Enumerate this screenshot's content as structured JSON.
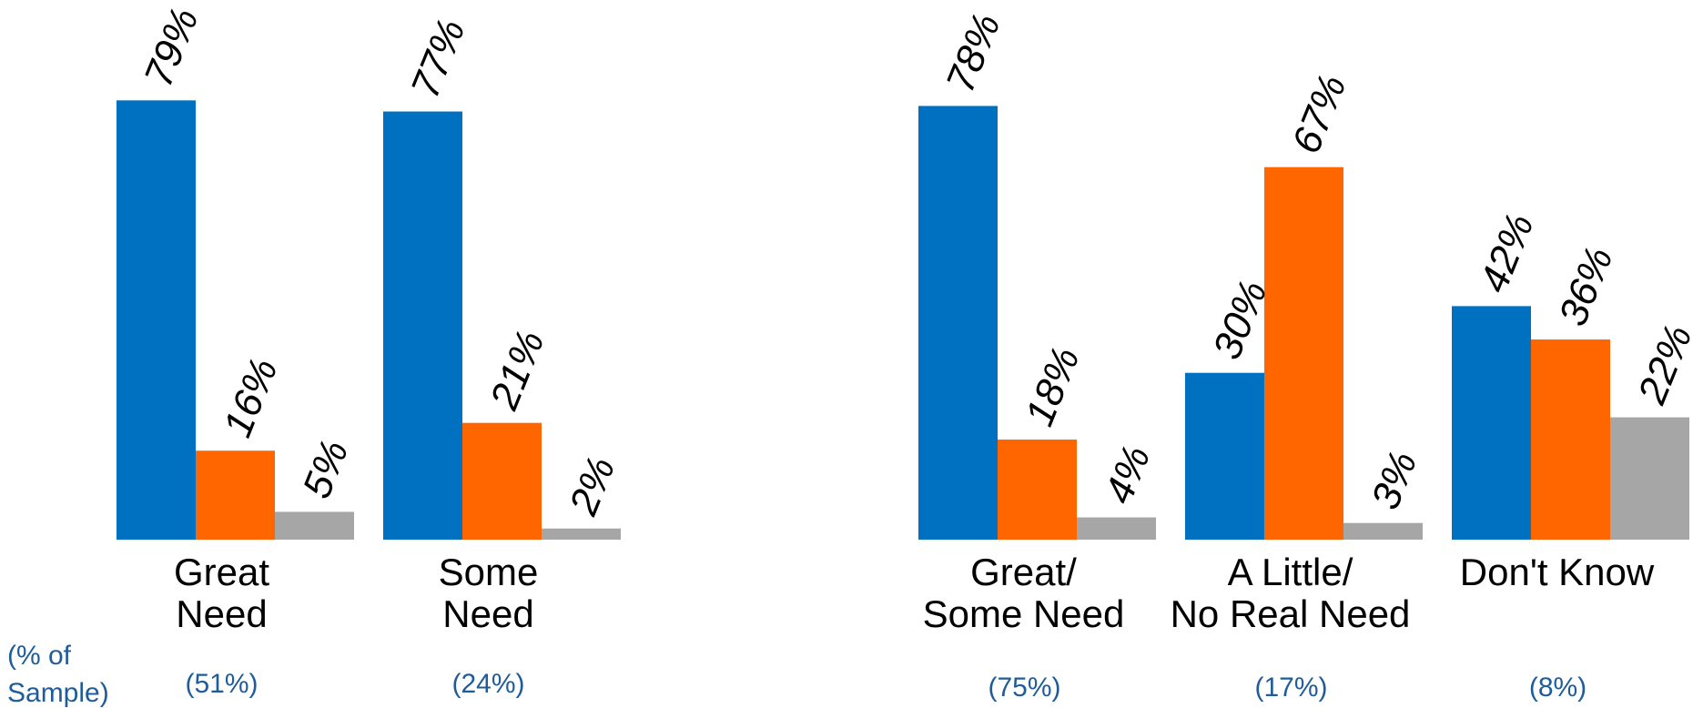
{
  "colors": {
    "series": [
      "#0070C0",
      "#FF6600",
      "#A6A6A6"
    ],
    "sample_text": "#1F5C99"
  },
  "sample_note": "(% of\nSample)",
  "chart_data": [
    {
      "type": "bar",
      "categories": [
        "Great\nNeed",
        "Some\nNeed"
      ],
      "sample_sizes": [
        "(51%)",
        "(24%)"
      ],
      "series": [
        {
          "values": [
            79,
            77
          ],
          "labels": [
            "79%",
            "77%"
          ]
        },
        {
          "values": [
            16,
            21
          ],
          "labels": [
            "16%",
            "21%"
          ]
        },
        {
          "values": [
            5,
            2
          ],
          "labels": [
            "5%",
            "2%"
          ]
        }
      ],
      "ylim": [
        0,
        100
      ],
      "grid": false,
      "legend": "none"
    },
    {
      "type": "bar",
      "categories": [
        "Great/\nSome Need",
        "A Little/\nNo Real Need",
        "Don't Know"
      ],
      "sample_sizes": [
        "(75%)",
        "(17%)",
        "(8%)"
      ],
      "series": [
        {
          "values": [
            78,
            30,
            42
          ],
          "labels": [
            "78%",
            "30%",
            "42%"
          ]
        },
        {
          "values": [
            18,
            67,
            36
          ],
          "labels": [
            "18%",
            "67%",
            "36%"
          ]
        },
        {
          "values": [
            4,
            3,
            22
          ],
          "labels": [
            "4%",
            "3%",
            "22%"
          ]
        }
      ],
      "ylim": [
        0,
        100
      ],
      "grid": false,
      "legend": "none"
    }
  ]
}
